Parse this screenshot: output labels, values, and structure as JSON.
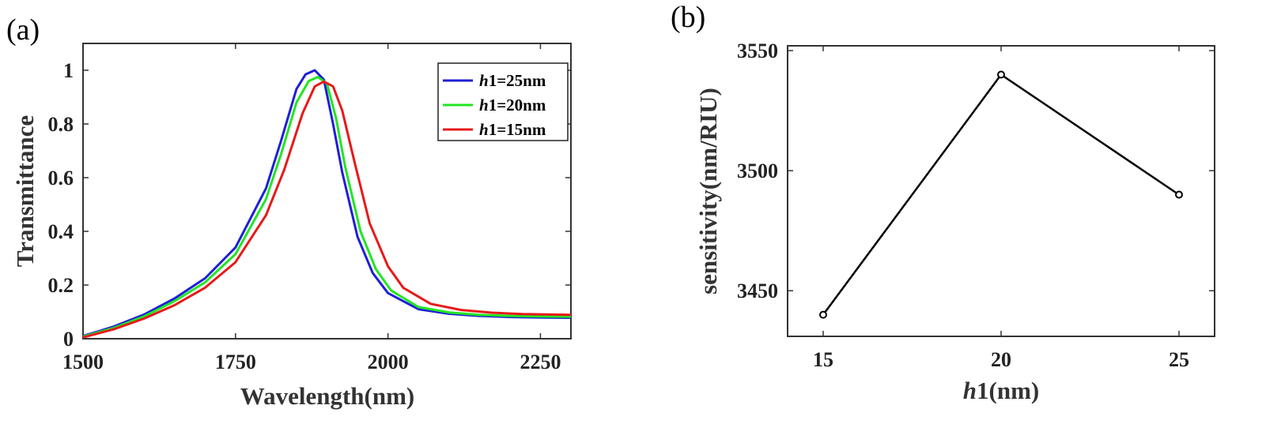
{
  "panels": {
    "a_label": "(a)",
    "b_label": "(b)"
  },
  "chart_data": [
    {
      "type": "line",
      "xlabel": "Wavelength(nm)",
      "ylabel": "Transmittance",
      "xlim": [
        1500,
        2300
      ],
      "ylim": [
        0,
        1.1
      ],
      "xticks": [
        "1500",
        "1750",
        "2000",
        "2250"
      ],
      "yticks": [
        "0",
        "0.2",
        "0.4",
        "0.6",
        "0.8",
        "1"
      ],
      "legend_position": "top-right",
      "series": [
        {
          "name_italic": "h",
          "name_rest": "1=25nm",
          "color": "#1f1fd6",
          "x": [
            1500,
            1550,
            1600,
            1650,
            1700,
            1750,
            1800,
            1825,
            1850,
            1865,
            1880,
            1895,
            1910,
            1925,
            1950,
            1975,
            2000,
            2050,
            2100,
            2150,
            2200,
            2250,
            2300
          ],
          "y": [
            0.01,
            0.045,
            0.09,
            0.15,
            0.225,
            0.34,
            0.56,
            0.74,
            0.93,
            0.985,
            1.0,
            0.965,
            0.8,
            0.62,
            0.38,
            0.245,
            0.17,
            0.11,
            0.093,
            0.085,
            0.081,
            0.079,
            0.078
          ]
        },
        {
          "name_italic": "h",
          "name_rest": "1=20nm",
          "color": "#22e622",
          "x": [
            1500,
            1550,
            1600,
            1650,
            1700,
            1750,
            1800,
            1825,
            1850,
            1870,
            1885,
            1900,
            1915,
            1930,
            1955,
            1980,
            2005,
            2050,
            2100,
            2150,
            2200,
            2250,
            2300
          ],
          "y": [
            0.008,
            0.04,
            0.083,
            0.14,
            0.21,
            0.315,
            0.52,
            0.69,
            0.88,
            0.96,
            0.975,
            0.95,
            0.82,
            0.64,
            0.4,
            0.26,
            0.18,
            0.118,
            0.098,
            0.089,
            0.085,
            0.083,
            0.082
          ]
        },
        {
          "name_italic": "h",
          "name_rest": "1=15nm",
          "color": "#e61a1a",
          "x": [
            1500,
            1550,
            1600,
            1650,
            1700,
            1750,
            1800,
            1830,
            1860,
            1880,
            1895,
            1910,
            1925,
            1945,
            1970,
            2000,
            2025,
            2070,
            2120,
            2170,
            2220,
            2270,
            2300
          ],
          "y": [
            0.005,
            0.035,
            0.075,
            0.125,
            0.19,
            0.285,
            0.46,
            0.63,
            0.84,
            0.94,
            0.958,
            0.94,
            0.85,
            0.66,
            0.43,
            0.27,
            0.19,
            0.13,
            0.107,
            0.097,
            0.092,
            0.09,
            0.089
          ]
        }
      ]
    },
    {
      "type": "line",
      "xlabel_italic": "h",
      "xlabel_rest": "1(nm)",
      "ylabel": "sensitivity(nm/RIU)",
      "xlim": [
        14,
        26
      ],
      "ylim": [
        3431,
        3552
      ],
      "xticks": [
        "15",
        "20",
        "25"
      ],
      "yticks": [
        "3450",
        "3500",
        "3550"
      ],
      "x": [
        15,
        20,
        25
      ],
      "y": [
        3440,
        3540,
        3490
      ],
      "color": "#000000",
      "marker": "circle"
    }
  ]
}
